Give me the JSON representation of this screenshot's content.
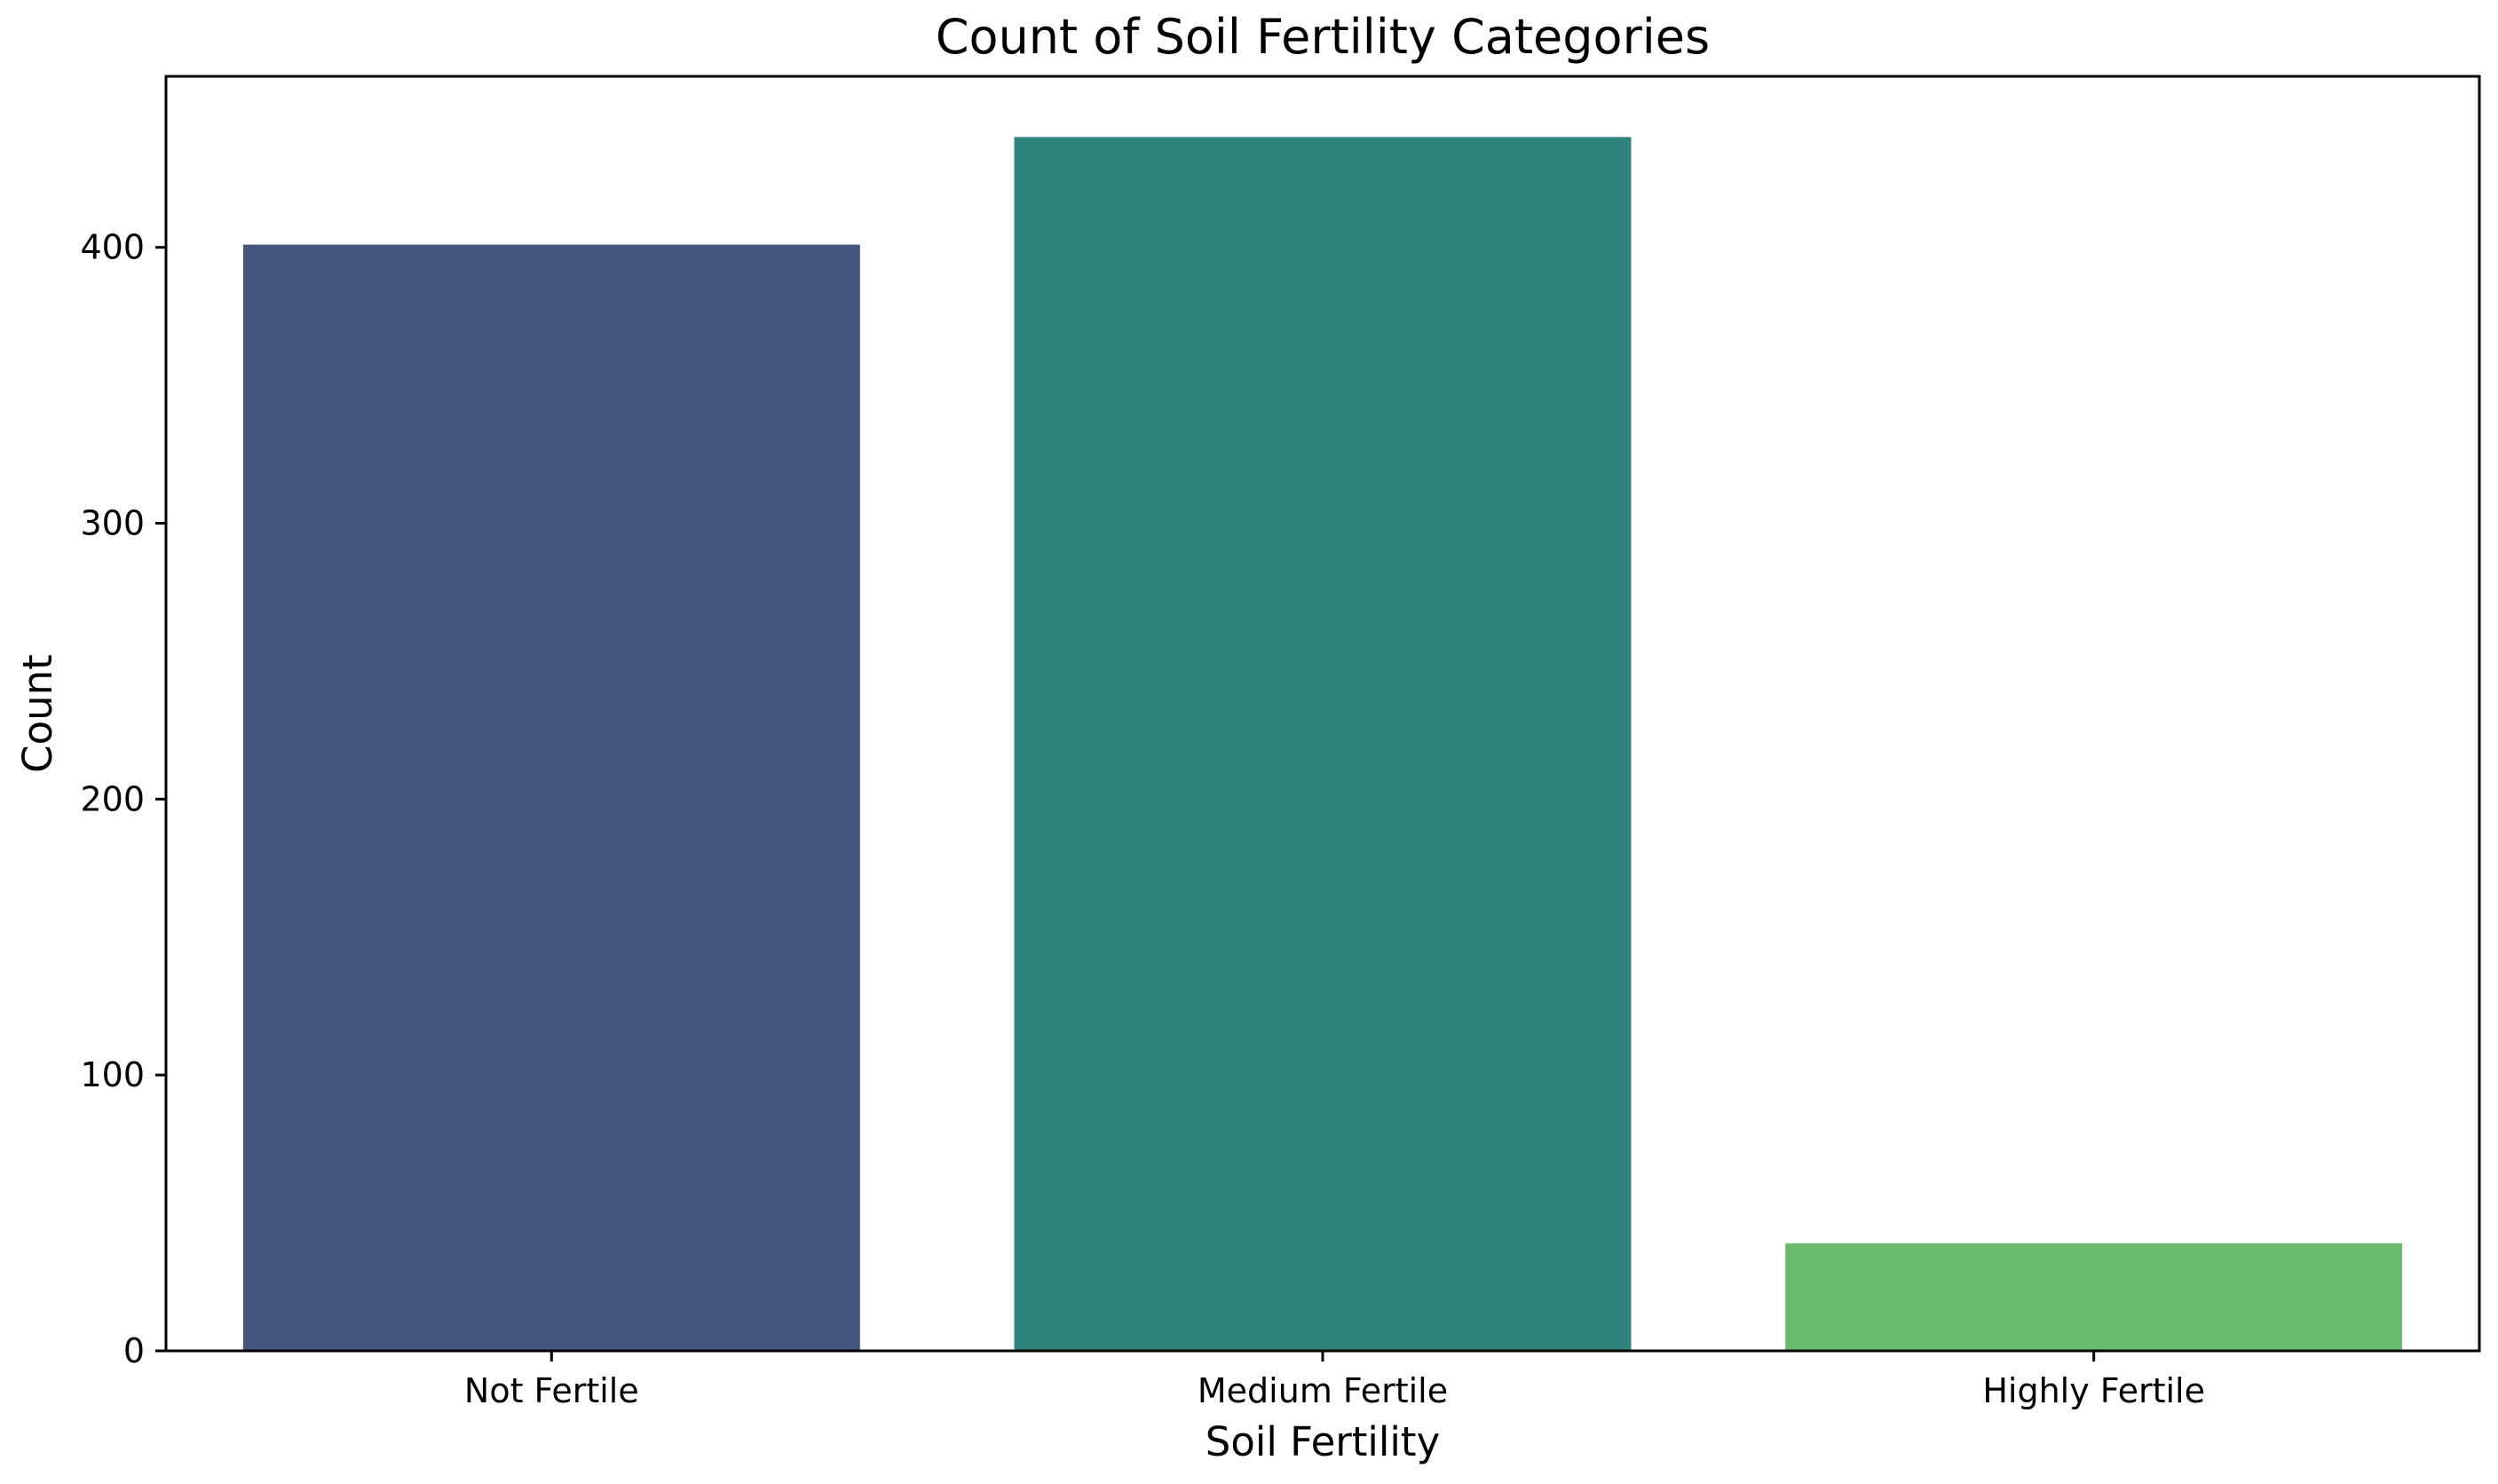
{
  "chart_data": {
    "type": "bar",
    "title": "Count of Soil Fertility Categories",
    "xlabel": "Soil Fertility",
    "ylabel": "Count",
    "categories": [
      "Not Fertile",
      "Medium Fertile",
      "Highly Fertile"
    ],
    "values": [
      401,
      440,
      39
    ],
    "colors": [
      "#46577f",
      "#2e837d",
      "#6bbb6e"
    ],
    "ylim": [
      0,
      462
    ],
    "yticks": [
      0,
      100,
      200,
      300,
      400
    ],
    "grid": false,
    "legend": "none"
  }
}
